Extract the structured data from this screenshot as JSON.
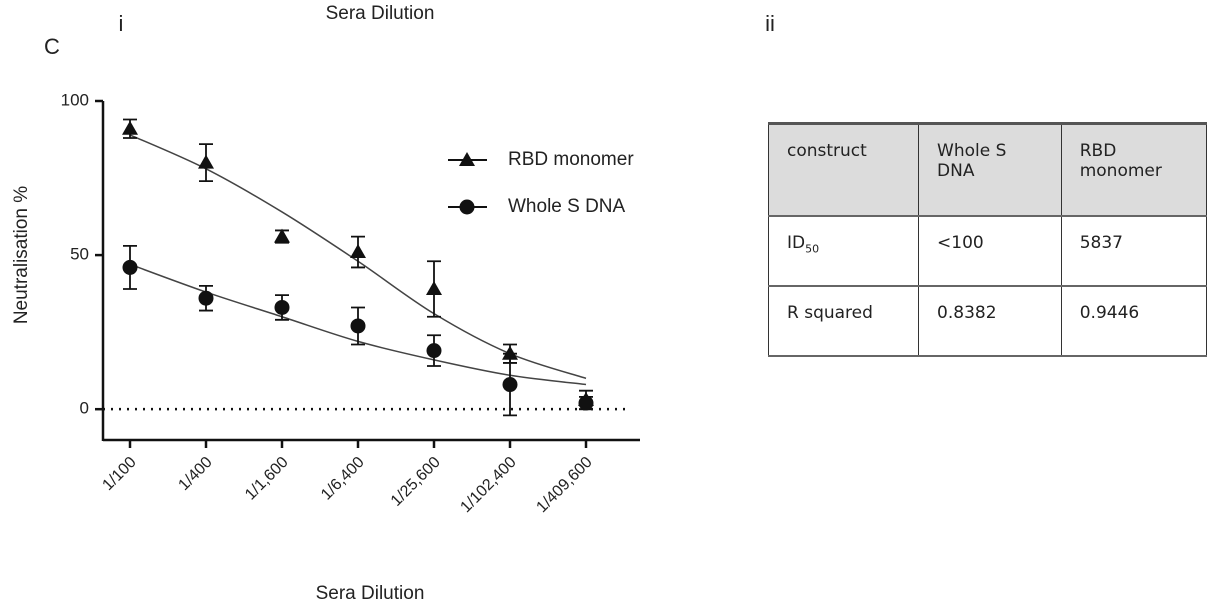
{
  "chart_data": {
    "type": "line",
    "title": "Sera Dilution",
    "panel_label": "C",
    "sub_label": "i",
    "x_label": "Sera Dilution",
    "y_label": "Neutralisation %",
    "categories": [
      "1/100",
      "1/400",
      "1/1,600",
      "1/6,400",
      "1/25,600",
      "1/102,400",
      "1/409,600"
    ],
    "series": [
      {
        "name": "RBD monomer",
        "marker": "triangle",
        "color": "#111",
        "values": [
          91,
          80,
          56,
          51,
          39,
          18,
          3
        ],
        "errors": [
          3,
          6,
          2,
          5,
          9,
          3,
          3
        ],
        "fit_values": [
          89,
          78,
          64,
          48,
          31,
          18,
          10
        ]
      },
      {
        "name": "Whole S DNA",
        "marker": "circle",
        "color": "#111",
        "values": [
          46,
          36,
          33,
          27,
          19,
          8,
          2
        ],
        "errors": [
          7,
          4,
          4,
          6,
          5,
          10,
          2
        ],
        "fit_values": [
          47,
          38,
          30,
          22,
          16,
          11,
          8
        ]
      }
    ],
    "ylim": [
      -10,
      100
    ],
    "yticks": [
      0,
      50,
      100
    ],
    "reference_line": 0,
    "legend": "top-right"
  },
  "table": {
    "label": "ii",
    "header": [
      "construct",
      "Whole S DNA",
      "RBD monomer"
    ],
    "rows": [
      [
        {
          "text": "ID",
          "subscript": "50"
        },
        "<100",
        "5837"
      ],
      [
        "R squared",
        "0.8382",
        "0.9446"
      ]
    ]
  }
}
